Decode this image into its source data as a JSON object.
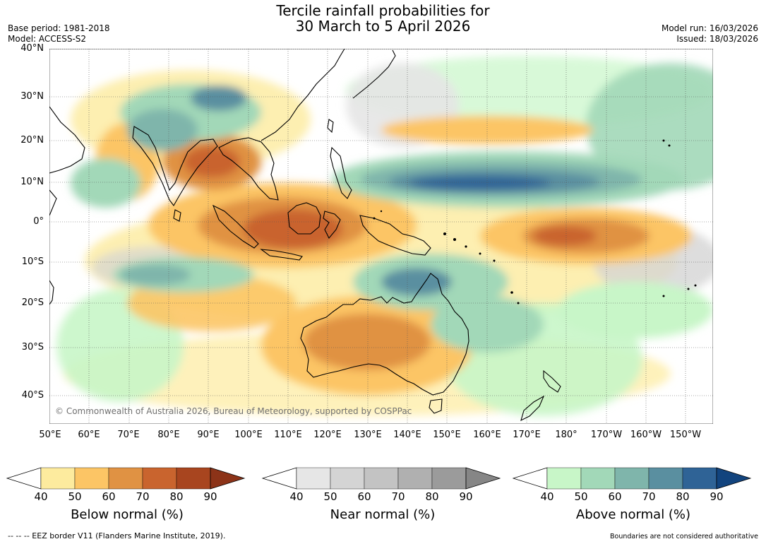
{
  "header": {
    "title_line1": "Tercile rainfall probabilities for",
    "title_line2": "30 March to 5 April 2026",
    "base_period": "Base period: 1981-2018",
    "model": "Model: ACCESS-S2",
    "model_run": "Model run: 16/03/2026",
    "issued": "Issued: 18/03/2026"
  },
  "map": {
    "copyright": "© Commonwealth of Australia 2026, Bureau of Meteorology, supported by COSPPac",
    "lat_labels": [
      "40°N",
      "30°N",
      "20°N",
      "10°N",
      "0°",
      "10°S",
      "20°S",
      "30°S",
      "40°S"
    ],
    "lon_labels": [
      "50°E",
      "60°E",
      "70°E",
      "80°E",
      "90°E",
      "100°E",
      "110°E",
      "120°E",
      "130°E",
      "140°E",
      "150°E",
      "160°E",
      "170°E",
      "180°",
      "170°W",
      "160°W",
      "150°W"
    ],
    "lon_range": [
      50,
      217
    ],
    "lat_range": [
      -46,
      40
    ]
  },
  "colorbars": [
    {
      "title": "Below normal (%)",
      "ticks": [
        "40",
        "50",
        "60",
        "70",
        "80",
        "90"
      ],
      "colors": [
        "#ffffff",
        "#fdeb9e",
        "#fcc565",
        "#e09243",
        "#c9642e",
        "#a8451f",
        "#8c3318"
      ]
    },
    {
      "title": "Near normal (%)",
      "ticks": [
        "40",
        "50",
        "60",
        "70",
        "80",
        "90"
      ],
      "colors": [
        "#ffffff",
        "#e6e6e6",
        "#d4d4d4",
        "#c3c3c3",
        "#b0b0b0",
        "#9b9b9b",
        "#868686"
      ]
    },
    {
      "title": "Above normal (%)",
      "ticks": [
        "40",
        "50",
        "60",
        "70",
        "80",
        "90"
      ],
      "colors": [
        "#ffffff",
        "#c8f6c8",
        "#a2d8b8",
        "#7fb5ab",
        "#5a8fa0",
        "#2f6396",
        "#12447e"
      ]
    }
  ],
  "footer": {
    "eez": "--  --  -- EEZ border V11 (Flanders Marine Institute, 2019).",
    "disclaimer": "Boundaries are not considered authoritative"
  }
}
